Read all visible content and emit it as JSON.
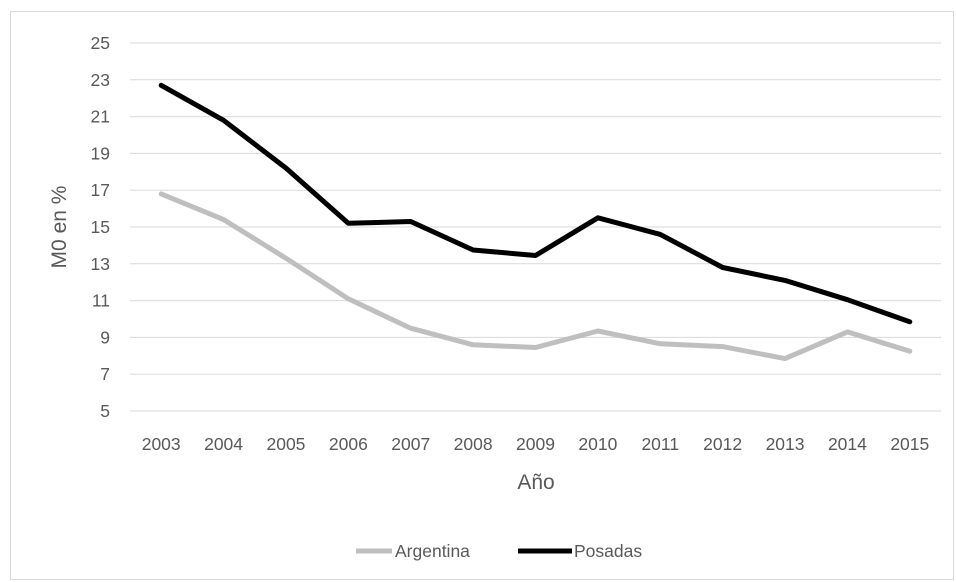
{
  "chart_data": {
    "type": "line",
    "title": "",
    "xlabel": "Año",
    "ylabel": "M0 en %",
    "ylim": [
      5,
      25
    ],
    "yticks": [
      5,
      7,
      9,
      11,
      13,
      15,
      17,
      19,
      21,
      23,
      25
    ],
    "categories": [
      "2003",
      "2004",
      "2005",
      "2006",
      "2007",
      "2008",
      "2009",
      "2010",
      "2011",
      "2012",
      "2013",
      "2014",
      "2015"
    ],
    "grid": true,
    "legend_position": "bottom",
    "series": [
      {
        "name": "Argentina",
        "color": "#bfbfbf",
        "values": [
          16.8,
          15.4,
          13.3,
          11.1,
          9.5,
          8.6,
          8.45,
          9.35,
          8.65,
          8.5,
          7.85,
          9.3,
          8.25
        ]
      },
      {
        "name": "Posadas",
        "color": "#000000",
        "values": [
          22.7,
          20.8,
          18.2,
          15.2,
          15.3,
          13.75,
          13.45,
          15.5,
          14.6,
          12.8,
          12.1,
          11.05,
          9.85
        ]
      }
    ]
  }
}
